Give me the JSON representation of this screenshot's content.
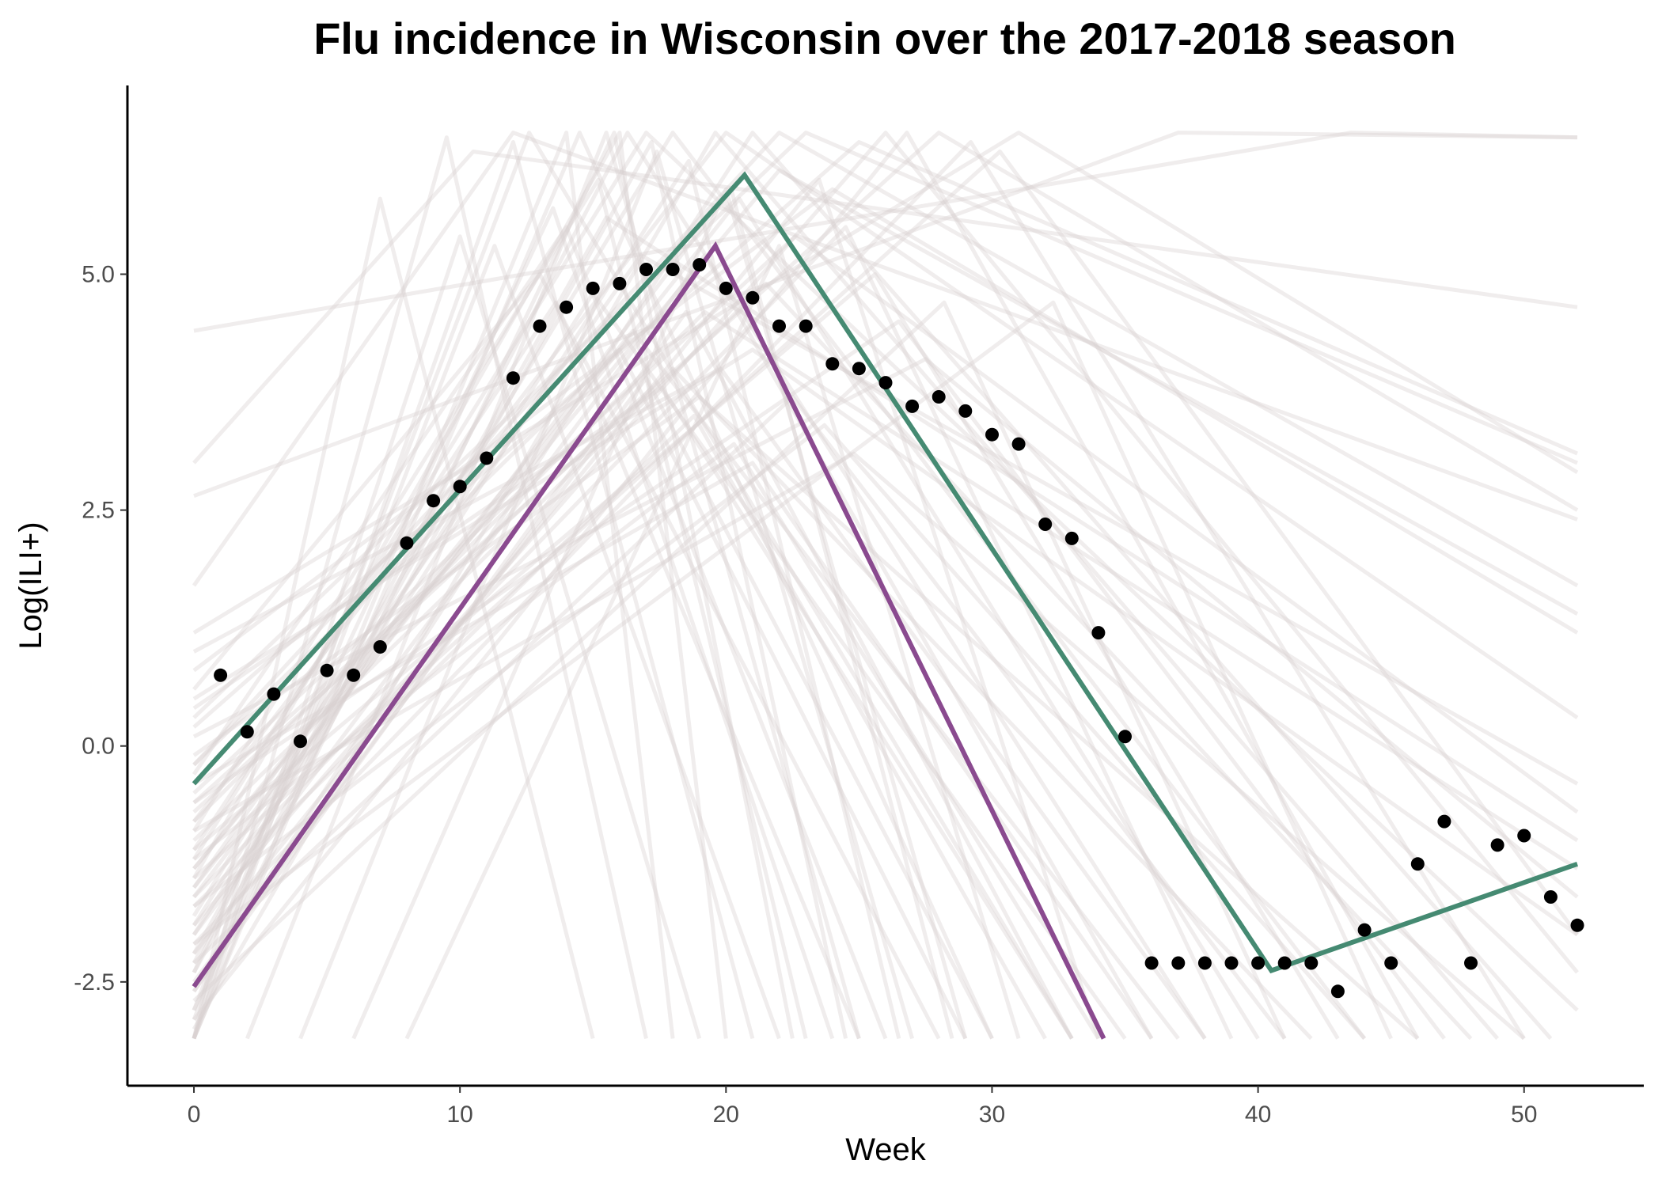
{
  "chart_data": {
    "type": "line",
    "title": "Flu incidence in Wisconsin over the 2017-2018 season",
    "xlabel": "Week",
    "ylabel": "Log(ILI+)",
    "xlim": [
      -2.5,
      54.5
    ],
    "ylim": [
      -3.6,
      7.0
    ],
    "x_ticks": [
      0,
      10,
      20,
      30,
      40,
      50
    ],
    "x_tick_labels": [
      "0",
      "10",
      "20",
      "30",
      "40",
      "50"
    ],
    "y_ticks": [
      -2.5,
      0,
      2.5,
      5
    ],
    "y_tick_labels": [
      "-2.5",
      "0.0",
      "2.5",
      "5.0"
    ],
    "grid": false,
    "legend": "none",
    "colors": {
      "observed": "#000000",
      "green_series": "#458a72",
      "purple_series": "#8a4a8f",
      "background_curves": "#d7cfcf"
    },
    "observed_points": {
      "x": [
        1,
        2,
        3,
        4,
        5,
        6,
        7,
        8,
        9,
        10,
        11,
        12,
        13,
        14,
        15,
        16,
        17,
        18,
        19,
        20,
        21,
        22,
        23,
        24,
        25,
        26,
        27,
        28,
        29,
        30,
        31,
        32,
        33,
        34,
        35,
        36,
        37,
        38,
        39,
        40,
        41,
        42,
        43,
        44,
        45,
        46,
        47,
        48,
        49,
        50,
        51,
        52
      ],
      "y": [
        0.75,
        0.15,
        0.55,
        0.05,
        0.8,
        0.75,
        1.05,
        2.15,
        2.6,
        2.75,
        3.05,
        3.9,
        4.45,
        4.65,
        4.85,
        4.9,
        5.05,
        5.05,
        5.1,
        4.85,
        4.75,
        4.45,
        4.45,
        4.05,
        4.0,
        3.85,
        3.6,
        3.7,
        3.55,
        3.3,
        3.2,
        2.35,
        2.2,
        1.2,
        0.1,
        -2.3,
        -2.3,
        -2.3,
        -2.3,
        -2.3,
        -2.3,
        -2.3,
        -2.6,
        -1.95,
        -2.3,
        -1.25,
        -0.8,
        -2.3,
        -1.05,
        -0.95,
        -1.6,
        -1.9
      ]
    },
    "series": [
      {
        "x": [
          0,
          20.7,
          40.5,
          52
        ],
        "y": [
          -0.4,
          6.05,
          -2.38,
          -1.25
        ]
      },
      {
        "x": [
          0,
          19.6,
          34.2
        ],
        "y": [
          -2.55,
          5.3,
          -3.1
        ]
      }
    ],
    "background_curves": [
      [
        [
          0,
          -3.1
        ],
        [
          9.5,
          6.45
        ],
        [
          17,
          -3.1
        ]
      ],
      [
        [
          0,
          -3.1
        ],
        [
          14.5,
          6.5
        ],
        [
          30,
          -3.1
        ]
      ],
      [
        [
          0,
          -2.8
        ],
        [
          12.6,
          6.5
        ],
        [
          33,
          -3.1
        ]
      ],
      [
        [
          0,
          -2.3
        ],
        [
          16.3,
          6.5
        ],
        [
          38,
          -3.1
        ]
      ],
      [
        [
          0,
          -1.8
        ],
        [
          18.0,
          6.5
        ],
        [
          44,
          -3.1
        ]
      ],
      [
        [
          0,
          -1.2
        ],
        [
          17.0,
          6.5
        ],
        [
          52,
          -2.8
        ]
      ],
      [
        [
          0,
          -0.8
        ],
        [
          20.0,
          6.5
        ],
        [
          52,
          0.3
        ]
      ],
      [
        [
          0,
          -0.2
        ],
        [
          22.0,
          6.5
        ],
        [
          52,
          1.7
        ]
      ],
      [
        [
          0,
          0.3
        ],
        [
          23.0,
          6.5
        ],
        [
          52,
          3.0
        ]
      ],
      [
        [
          0,
          1.2
        ],
        [
          31.0,
          6.5
        ],
        [
          52,
          2.9
        ]
      ],
      [
        [
          0,
          2.65
        ],
        [
          37.0,
          6.5
        ],
        [
          52,
          6.45
        ]
      ],
      [
        [
          0,
          3.0
        ],
        [
          10.5,
          6.3
        ],
        [
          52,
          4.65
        ]
      ],
      [
        [
          0,
          4.4
        ],
        [
          43.5,
          6.5
        ],
        [
          52,
          6.45
        ]
      ],
      [
        [
          0,
          1.7
        ],
        [
          12.0,
          6.5
        ],
        [
          52,
          2.4
        ]
      ],
      [
        [
          0,
          -1.5
        ],
        [
          20.5,
          5.8
        ],
        [
          40,
          -3.1
        ]
      ],
      [
        [
          0,
          -2.0
        ],
        [
          19.2,
          5.2
        ],
        [
          36,
          -3.1
        ]
      ],
      [
        [
          0,
          -2.6
        ],
        [
          18.5,
          4.6
        ],
        [
          33,
          -3.1
        ]
      ],
      [
        [
          0,
          -1.0
        ],
        [
          21.5,
          4.9
        ],
        [
          48,
          -3.1
        ]
      ],
      [
        [
          0,
          -0.5
        ],
        [
          22.6,
          5.4
        ],
        [
          52,
          -0.7
        ]
      ],
      [
        [
          0,
          0.8
        ],
        [
          24.0,
          5.9
        ],
        [
          52,
          1.2
        ]
      ],
      [
        [
          2,
          -3.1
        ],
        [
          15.5,
          6.5
        ],
        [
          25,
          -3.1
        ]
      ],
      [
        [
          4,
          -3.1
        ],
        [
          17.4,
          6.3
        ],
        [
          27,
          -3.1
        ]
      ],
      [
        [
          6,
          -3.1
        ],
        [
          20.0,
          5.9
        ],
        [
          29,
          -3.1
        ]
      ],
      [
        [
          8,
          -3.1
        ],
        [
          22.0,
          5.3
        ],
        [
          31,
          -3.1
        ]
      ],
      [
        [
          0,
          -3.1
        ],
        [
          7.0,
          5.8
        ],
        [
          15,
          -3.1
        ]
      ],
      [
        [
          0,
          -2.9
        ],
        [
          11.3,
          5.3
        ],
        [
          22,
          -3.1
        ]
      ],
      [
        [
          0,
          -2.4
        ],
        [
          13.5,
          5.7
        ],
        [
          24,
          -3.1
        ]
      ],
      [
        [
          0,
          -1.9
        ],
        [
          15.0,
          4.8
        ],
        [
          35,
          -3.1
        ]
      ],
      [
        [
          0,
          -1.3
        ],
        [
          16.5,
          4.4
        ],
        [
          37,
          -3.1
        ]
      ],
      [
        [
          0,
          -0.7
        ],
        [
          18.0,
          4.0
        ],
        [
          42,
          -3.1
        ]
      ],
      [
        [
          0,
          -0.1
        ],
        [
          19.0,
          3.7
        ],
        [
          46,
          -3.1
        ]
      ],
      [
        [
          0,
          0.5
        ],
        [
          21.0,
          4.2
        ],
        [
          52,
          -2.0
        ]
      ],
      [
        [
          0,
          -2.2
        ],
        [
          23.5,
          6.0
        ],
        [
          34,
          -3.1
        ]
      ],
      [
        [
          0,
          -1.6
        ],
        [
          24.5,
          5.5
        ],
        [
          39,
          -3.1
        ]
      ],
      [
        [
          0,
          -1.1
        ],
        [
          25.6,
          5.0
        ],
        [
          43,
          -3.1
        ]
      ],
      [
        [
          0,
          -0.6
        ],
        [
          26.5,
          4.5
        ],
        [
          47,
          -3.1
        ]
      ],
      [
        [
          0,
          0.1
        ],
        [
          27.5,
          4.1
        ],
        [
          52,
          -1.6
        ]
      ],
      [
        [
          0,
          -2.7
        ],
        [
          28.2,
          4.7
        ],
        [
          41,
          -3.1
        ]
      ],
      [
        [
          0,
          -2.1
        ],
        [
          32.3,
          4.7
        ],
        [
          45,
          -3.1
        ]
      ],
      [
        [
          0,
          -1.4
        ],
        [
          16.0,
          6.5
        ],
        [
          20,
          -3.1
        ]
      ],
      [
        [
          0,
          -0.9
        ],
        [
          15.2,
          6.0
        ],
        [
          23,
          -3.1
        ]
      ],
      [
        [
          0,
          -0.3
        ],
        [
          14.0,
          5.5
        ],
        [
          26,
          -3.1
        ]
      ],
      [
        [
          0,
          0.6
        ],
        [
          13.0,
          5.0
        ],
        [
          28,
          -3.1
        ]
      ],
      [
        [
          0,
          -2.5
        ],
        [
          17.0,
          3.9
        ],
        [
          30,
          -3.1
        ]
      ],
      [
        [
          0,
          -1.7
        ],
        [
          18.8,
          3.5
        ],
        [
          32,
          -3.1
        ]
      ],
      [
        [
          0,
          -1.2
        ],
        [
          20.3,
          3.2
        ],
        [
          34,
          -3.1
        ]
      ],
      [
        [
          0,
          -0.4
        ],
        [
          21.0,
          3.0
        ],
        [
          36,
          -3.1
        ]
      ],
      [
        [
          0,
          -3.0
        ],
        [
          19.6,
          6.5
        ],
        [
          49,
          -3.1
        ]
      ],
      [
        [
          0,
          -2.6
        ],
        [
          21.0,
          6.5
        ],
        [
          51,
          -3.1
        ]
      ],
      [
        [
          0,
          -1.9
        ],
        [
          26.0,
          6.5
        ],
        [
          52,
          -2.4
        ]
      ],
      [
        [
          0,
          -1.3
        ],
        [
          22.0,
          6.1
        ],
        [
          52,
          1.4
        ]
      ],
      [
        [
          0,
          -0.6
        ],
        [
          28.0,
          6.5
        ],
        [
          52,
          2.5
        ]
      ],
      [
        [
          0,
          0.2
        ],
        [
          25.0,
          6.4
        ],
        [
          52,
          3.1
        ]
      ],
      [
        [
          0,
          -2.2
        ],
        [
          15.5,
          5.6
        ],
        [
          52,
          -1.0
        ]
      ],
      [
        [
          0,
          -1.5
        ],
        [
          16.8,
          5.2
        ],
        [
          52,
          -0.4
        ]
      ],
      [
        [
          0,
          -0.8
        ],
        [
          19.2,
          4.6
        ],
        [
          52,
          -1.3
        ]
      ],
      [
        [
          0,
          -3.1
        ],
        [
          12.0,
          6.4
        ],
        [
          21,
          -3.1
        ]
      ],
      [
        [
          0,
          -3.1
        ],
        [
          14.0,
          6.5
        ],
        [
          18,
          -3.1
        ]
      ],
      [
        [
          0,
          -2.8
        ],
        [
          15.8,
          6.5
        ],
        [
          22.5,
          -3.1
        ]
      ],
      [
        [
          0,
          -2.4
        ],
        [
          17.2,
          6.4
        ],
        [
          24.5,
          -3.1
        ]
      ],
      [
        [
          0,
          -2.0
        ],
        [
          18.6,
          6.2
        ],
        [
          26.5,
          -3.1
        ]
      ],
      [
        [
          0,
          -1.6
        ],
        [
          20.2,
          5.9
        ],
        [
          28.5,
          -3.1
        ]
      ],
      [
        [
          0,
          -3.1
        ],
        [
          10.0,
          5.4
        ],
        [
          19,
          -3.1
        ]
      ],
      [
        [
          0,
          -1.1
        ],
        [
          13.6,
          4.7
        ],
        [
          25,
          -3.1
        ]
      ],
      [
        [
          0,
          -0.2
        ],
        [
          16.0,
          4.2
        ],
        [
          29,
          -3.1
        ]
      ],
      [
        [
          0,
          0.4
        ],
        [
          17.6,
          3.8
        ],
        [
          33,
          -3.1
        ]
      ],
      [
        [
          0,
          1.0
        ],
        [
          19.8,
          4.0
        ],
        [
          38,
          -3.1
        ]
      ],
      [
        [
          0,
          -2.3
        ],
        [
          22.5,
          3.7
        ],
        [
          41,
          -3.1
        ]
      ],
      [
        [
          0,
          -1.7
        ],
        [
          23.7,
          3.4
        ],
        [
          44,
          -3.1
        ]
      ],
      [
        [
          0,
          -0.9
        ],
        [
          24.8,
          3.1
        ],
        [
          50,
          -3.1
        ]
      ],
      [
        [
          0,
          -2.9
        ],
        [
          26.8,
          6.5
        ],
        [
          46,
          -3.1
        ]
      ],
      [
        [
          0,
          -2.1
        ],
        [
          29.2,
          6.4
        ],
        [
          50,
          -3.1
        ]
      ],
      [
        [
          0,
          -1.4
        ],
        [
          30.3,
          6.3
        ],
        [
          52,
          -2.0
        ]
      ]
    ]
  }
}
